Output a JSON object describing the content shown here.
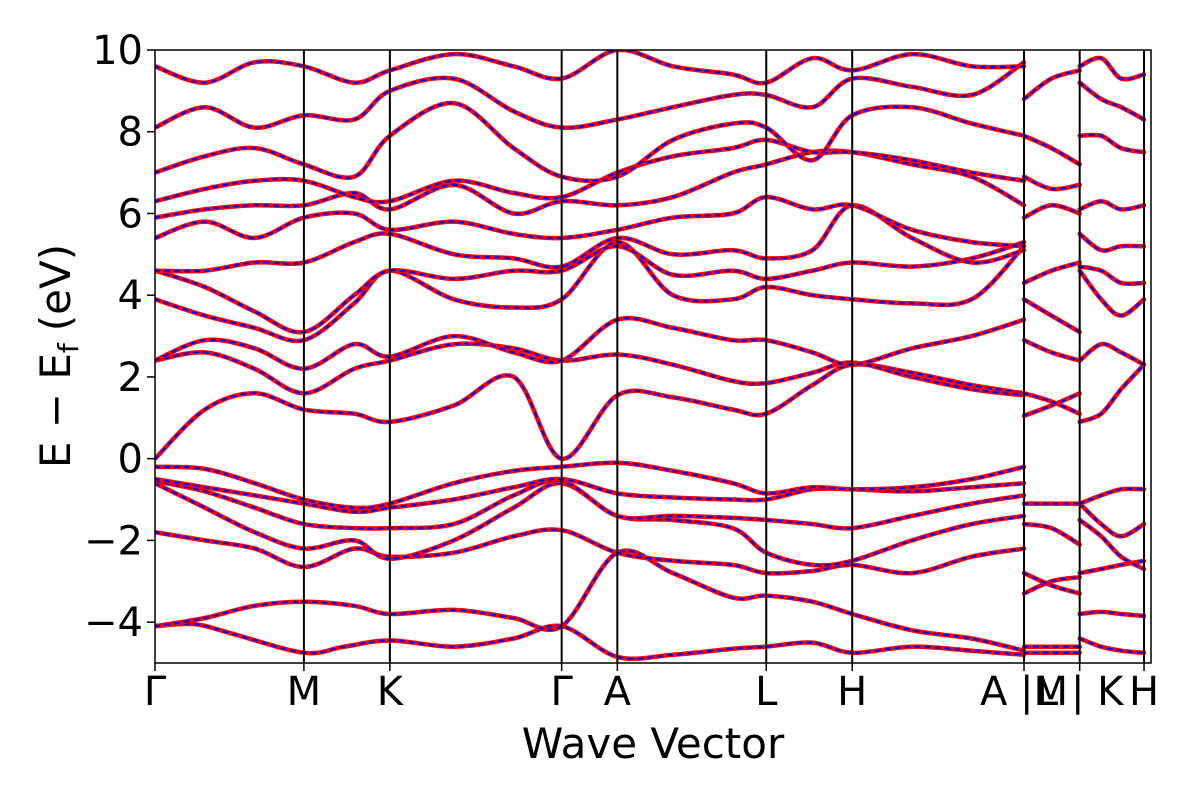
{
  "chart_data": {
    "type": "line",
    "title": "",
    "xlabel": "Wave Vector",
    "ylabel": "E − E",
    "ylabel_sub": "f",
    "ylabel_unit": "(eV)",
    "ylim": [
      -5,
      10
    ],
    "yticks": [
      -4,
      -2,
      0,
      2,
      4,
      6,
      8,
      10
    ],
    "ytick_labels": [
      "−4",
      "−2",
      "0",
      "2",
      "4",
      "6",
      "8",
      "10"
    ],
    "grid": false,
    "legend": "none",
    "path_length": 1.0,
    "kpoints": [
      {
        "label": "Γ",
        "x": 0.0
      },
      {
        "label": "M",
        "x": 0.1495
      },
      {
        "label": "K",
        "x": 0.2358
      },
      {
        "label": "Γ",
        "x": 0.4083
      },
      {
        "label": "A",
        "x": 0.4642
      },
      {
        "label": "L",
        "x": 0.6137
      },
      {
        "label": "H",
        "x": 0.7
      },
      {
        "label": "A |M",
        "x": 0.8725
      },
      {
        "label": "L | K",
        "x": 0.9284
      },
      {
        "label": "H",
        "x": 0.993
      }
    ],
    "segment_breaks": [
      0.8725,
      0.9284
    ],
    "colors": {
      "dft": "#ff0000",
      "model": "#0000ff"
    },
    "series": [
      {
        "x": [
          0,
          0.04,
          0.08,
          0.1495,
          0.19,
          0.2358,
          0.3,
          0.36,
          0.4083,
          0.4642,
          0.52,
          0.58,
          0.6137,
          0.66,
          0.7,
          0.76,
          0.82,
          0.8725
        ],
        "values": [
          -4.1,
          -4.05,
          -4.3,
          -4.75,
          -4.6,
          -4.45,
          -4.6,
          -4.4,
          -4.1,
          -4.85,
          -4.8,
          -4.65,
          -4.6,
          -4.5,
          -4.75,
          -4.6,
          -4.7,
          -4.8
        ]
      },
      {
        "x": [
          0,
          0.05,
          0.1,
          0.1495,
          0.2,
          0.2358,
          0.3,
          0.36,
          0.4083,
          0.4642,
          0.52,
          0.58,
          0.6137,
          0.66,
          0.7,
          0.76,
          0.82,
          0.8725
        ],
        "values": [
          -4.1,
          -3.9,
          -3.6,
          -3.5,
          -3.6,
          -3.8,
          -3.7,
          -3.9,
          -4.1,
          -2.3,
          -2.8,
          -3.4,
          -3.35,
          -3.5,
          -3.8,
          -4.2,
          -4.4,
          -4.7
        ]
      },
      {
        "x": [
          0,
          0.05,
          0.1,
          0.1495,
          0.2,
          0.2358,
          0.3,
          0.36,
          0.4083,
          0.4642,
          0.52,
          0.58,
          0.6137,
          0.66,
          0.7,
          0.76,
          0.82,
          0.8725
        ],
        "values": [
          -1.8,
          -2.0,
          -2.2,
          -2.65,
          -2.2,
          -2.4,
          -2.3,
          -1.9,
          -1.75,
          -2.3,
          -2.5,
          -2.6,
          -2.8,
          -2.75,
          -2.6,
          -2.8,
          -2.4,
          -2.2
        ]
      },
      {
        "x": [
          0,
          0.05,
          0.1,
          0.1495,
          0.2,
          0.2358,
          0.3,
          0.36,
          0.4083,
          0.4642,
          0.52,
          0.58,
          0.6137,
          0.66,
          0.7,
          0.76,
          0.82,
          0.8725
        ],
        "values": [
          -0.6,
          -1.2,
          -1.8,
          -2.2,
          -2.0,
          -2.45,
          -2.0,
          -1.2,
          -0.6,
          -1.4,
          -1.5,
          -1.7,
          -2.3,
          -2.6,
          -2.5,
          -2.0,
          -1.6,
          -1.4
        ]
      },
      {
        "x": [
          0,
          0.05,
          0.1,
          0.1495,
          0.2,
          0.2358,
          0.3,
          0.36,
          0.4083,
          0.4642,
          0.52,
          0.58,
          0.6137,
          0.66,
          0.7,
          0.76,
          0.82,
          0.8725
        ],
        "values": [
          -0.55,
          -0.8,
          -1.2,
          -1.6,
          -1.7,
          -1.7,
          -1.6,
          -0.9,
          -0.55,
          -1.4,
          -1.4,
          -1.45,
          -1.5,
          -1.6,
          -1.7,
          -1.4,
          -1.1,
          -0.9
        ]
      },
      {
        "x": [
          0,
          0.05,
          0.1,
          0.1495,
          0.2,
          0.2358,
          0.3,
          0.36,
          0.4083,
          0.4642,
          0.52,
          0.58,
          0.6137,
          0.66,
          0.7,
          0.76,
          0.82,
          0.8725
        ],
        "values": [
          -0.5,
          -0.7,
          -0.9,
          -1.1,
          -1.3,
          -1.2,
          -1.0,
          -0.7,
          -0.5,
          -0.85,
          -0.95,
          -1.0,
          -1.0,
          -0.75,
          -0.75,
          -0.8,
          -0.7,
          -0.6
        ]
      },
      {
        "x": [
          0,
          0.05,
          0.1,
          0.1495,
          0.2,
          0.2358,
          0.3,
          0.36,
          0.4083,
          0.4642,
          0.52,
          0.58,
          0.6137,
          0.66,
          0.7,
          0.76,
          0.82,
          0.8725
        ],
        "values": [
          -0.2,
          -0.25,
          -0.6,
          -1.0,
          -1.2,
          -1.1,
          -0.6,
          -0.3,
          -0.2,
          -0.1,
          -0.3,
          -0.6,
          -0.85,
          -0.7,
          -0.75,
          -0.7,
          -0.5,
          -0.2
        ]
      },
      {
        "x": [
          0,
          0.05,
          0.1,
          0.1495,
          0.2,
          0.2358,
          0.3,
          0.36,
          0.4083,
          0.4642,
          0.52,
          0.58,
          0.6137,
          0.66,
          0.7,
          0.76,
          0.82,
          0.8725
        ],
        "values": [
          0.0,
          1.2,
          1.6,
          1.2,
          1.1,
          0.9,
          1.3,
          2.0,
          0.0,
          1.55,
          1.5,
          1.2,
          1.1,
          1.8,
          2.3,
          2.1,
          1.8,
          1.6
        ]
      },
      {
        "x": [
          0,
          0.05,
          0.1,
          0.1495,
          0.2,
          0.2358,
          0.3,
          0.36,
          0.4083,
          0.4642,
          0.52,
          0.58,
          0.6137,
          0.66,
          0.7,
          0.76,
          0.82,
          0.8725
        ],
        "values": [
          2.4,
          2.6,
          2.2,
          1.6,
          2.2,
          2.4,
          2.8,
          2.7,
          2.4,
          2.55,
          2.3,
          1.9,
          1.85,
          2.1,
          2.35,
          2.0,
          1.7,
          1.55
        ]
      },
      {
        "x": [
          0,
          0.05,
          0.1,
          0.1495,
          0.2,
          0.2358,
          0.3,
          0.36,
          0.4083,
          0.4642,
          0.52,
          0.58,
          0.6137,
          0.66,
          0.7,
          0.76,
          0.82,
          0.8725
        ],
        "values": [
          2.4,
          2.9,
          2.7,
          2.2,
          2.8,
          2.5,
          3.0,
          2.6,
          2.4,
          3.4,
          3.2,
          2.9,
          2.9,
          2.6,
          2.3,
          2.7,
          3.0,
          3.4
        ]
      },
      {
        "x": [
          0,
          0.05,
          0.1,
          0.1495,
          0.2,
          0.2358,
          0.3,
          0.36,
          0.4083,
          0.4642,
          0.52,
          0.58,
          0.6137,
          0.66,
          0.7,
          0.76,
          0.82,
          0.8725
        ],
        "values": [
          3.9,
          3.5,
          3.2,
          2.9,
          3.8,
          4.6,
          3.9,
          3.7,
          3.9,
          5.3,
          4.0,
          3.9,
          4.2,
          4.0,
          3.9,
          3.8,
          3.9,
          5.2
        ]
      },
      {
        "x": [
          0,
          0.05,
          0.1,
          0.1495,
          0.2,
          0.2358,
          0.3,
          0.36,
          0.4083,
          0.4642,
          0.52,
          0.58,
          0.6137,
          0.66,
          0.7,
          0.76,
          0.82,
          0.8725
        ],
        "values": [
          4.6,
          4.2,
          3.6,
          3.1,
          4.0,
          4.6,
          4.4,
          4.6,
          4.6,
          5.2,
          4.5,
          4.6,
          4.4,
          4.6,
          4.8,
          4.7,
          4.9,
          5.3
        ]
      },
      {
        "x": [
          0,
          0.05,
          0.1,
          0.1495,
          0.2,
          0.2358,
          0.3,
          0.36,
          0.4083,
          0.4642,
          0.52,
          0.58,
          0.6137,
          0.66,
          0.7,
          0.76,
          0.82,
          0.8725
        ],
        "values": [
          4.6,
          4.6,
          4.8,
          4.8,
          5.3,
          5.5,
          5.0,
          4.9,
          4.7,
          5.4,
          5.0,
          5.1,
          4.9,
          5.1,
          6.2,
          5.4,
          4.8,
          5.1
        ]
      },
      {
        "x": [
          0,
          0.05,
          0.1,
          0.1495,
          0.2,
          0.2358,
          0.3,
          0.36,
          0.4083,
          0.4642,
          0.52,
          0.58,
          0.6137,
          0.66,
          0.7,
          0.76,
          0.82,
          0.8725
        ],
        "values": [
          5.4,
          5.8,
          5.4,
          5.9,
          6.0,
          5.6,
          5.8,
          5.5,
          5.4,
          5.6,
          5.9,
          6.0,
          6.4,
          6.1,
          6.2,
          5.6,
          5.3,
          5.2
        ]
      },
      {
        "x": [
          0,
          0.05,
          0.1,
          0.1495,
          0.2,
          0.2358,
          0.3,
          0.36,
          0.4083,
          0.4642,
          0.52,
          0.58,
          0.6137,
          0.66,
          0.7,
          0.76,
          0.82,
          0.8725
        ],
        "values": [
          5.9,
          6.1,
          6.2,
          6.2,
          6.5,
          6.1,
          6.7,
          6.0,
          6.3,
          6.2,
          6.4,
          7.0,
          7.2,
          7.5,
          7.5,
          7.2,
          6.9,
          6.2
        ]
      },
      {
        "x": [
          0,
          0.05,
          0.1,
          0.1495,
          0.2,
          0.2358,
          0.3,
          0.36,
          0.4083,
          0.4642,
          0.52,
          0.58,
          0.6137,
          0.66,
          0.7,
          0.76,
          0.82,
          0.8725
        ],
        "values": [
          6.3,
          6.6,
          6.8,
          6.8,
          6.4,
          6.3,
          6.8,
          6.5,
          6.4,
          7.0,
          7.4,
          7.6,
          7.8,
          7.5,
          7.5,
          7.3,
          7.0,
          6.8
        ]
      },
      {
        "x": [
          0,
          0.05,
          0.1,
          0.1495,
          0.2,
          0.2358,
          0.3,
          0.36,
          0.4083,
          0.4642,
          0.52,
          0.58,
          0.6137,
          0.66,
          0.7,
          0.76,
          0.82,
          0.8725
        ],
        "values": [
          7.0,
          7.4,
          7.6,
          7.2,
          6.9,
          7.9,
          8.7,
          7.6,
          6.9,
          6.9,
          7.8,
          8.2,
          8.1,
          7.3,
          8.4,
          8.6,
          8.2,
          7.9
        ]
      },
      {
        "x": [
          0,
          0.05,
          0.1,
          0.1495,
          0.2,
          0.2358,
          0.3,
          0.36,
          0.4083,
          0.4642,
          0.52,
          0.58,
          0.6137,
          0.66,
          0.7,
          0.76,
          0.82,
          0.8725
        ],
        "values": [
          8.1,
          8.6,
          8.1,
          8.4,
          8.3,
          9.0,
          9.3,
          8.5,
          8.1,
          8.3,
          8.6,
          8.9,
          8.9,
          8.6,
          9.3,
          9.1,
          8.9,
          9.7
        ]
      },
      {
        "x": [
          0,
          0.05,
          0.1,
          0.1495,
          0.2,
          0.2358,
          0.3,
          0.36,
          0.4083,
          0.4642,
          0.52,
          0.58,
          0.6137,
          0.66,
          0.7,
          0.76,
          0.82,
          0.8725
        ],
        "values": [
          9.6,
          9.2,
          9.7,
          9.6,
          9.2,
          9.5,
          9.9,
          9.6,
          9.3,
          10.0,
          9.6,
          9.4,
          9.2,
          9.8,
          9.5,
          9.9,
          9.6,
          9.6
        ]
      },
      {
        "x": [
          0.8725,
          0.9,
          0.9284
        ],
        "values": [
          -4.75,
          -4.75,
          -4.75
        ]
      },
      {
        "x": [
          0.8725,
          0.9,
          0.9284
        ],
        "values": [
          -4.6,
          -4.6,
          -4.6
        ]
      },
      {
        "x": [
          0.8725,
          0.9,
          0.9284
        ],
        "values": [
          -3.3,
          -3.0,
          -2.9
        ]
      },
      {
        "x": [
          0.8725,
          0.9,
          0.9284
        ],
        "values": [
          -2.8,
          -3.1,
          -3.3
        ]
      },
      {
        "x": [
          0.8725,
          0.9,
          0.9284
        ],
        "values": [
          -1.6,
          -1.7,
          -2.1
        ]
      },
      {
        "x": [
          0.8725,
          0.9,
          0.9284
        ],
        "values": [
          -1.1,
          -1.1,
          -1.1
        ]
      },
      {
        "x": [
          0.8725,
          0.9,
          0.9284
        ],
        "values": [
          1.05,
          1.3,
          1.6
        ]
      },
      {
        "x": [
          0.8725,
          0.9,
          0.9284
        ],
        "values": [
          1.6,
          1.4,
          1.1
        ]
      },
      {
        "x": [
          0.8725,
          0.9,
          0.9284
        ],
        "values": [
          2.9,
          2.6,
          2.4
        ]
      },
      {
        "x": [
          0.8725,
          0.9,
          0.9284
        ],
        "values": [
          3.9,
          3.5,
          3.1
        ]
      },
      {
        "x": [
          0.8725,
          0.9,
          0.9284
        ],
        "values": [
          4.3,
          4.6,
          4.8
        ]
      },
      {
        "x": [
          0.8725,
          0.9,
          0.9284
        ],
        "values": [
          5.9,
          6.2,
          6.0
        ]
      },
      {
        "x": [
          0.8725,
          0.9,
          0.9284
        ],
        "values": [
          6.9,
          6.6,
          6.7
        ]
      },
      {
        "x": [
          0.8725,
          0.9,
          0.9284
        ],
        "values": [
          7.9,
          7.6,
          7.2
        ]
      },
      {
        "x": [
          0.8725,
          0.9,
          0.9284
        ],
        "values": [
          8.8,
          9.3,
          9.5
        ]
      },
      {
        "x": [
          0.9284,
          0.95,
          0.97,
          0.993
        ],
        "values": [
          -4.4,
          -4.6,
          -4.7,
          -4.75
        ]
      },
      {
        "x": [
          0.9284,
          0.95,
          0.97,
          0.993
        ],
        "values": [
          -3.8,
          -3.75,
          -3.8,
          -3.85
        ]
      },
      {
        "x": [
          0.9284,
          0.95,
          0.97,
          0.993
        ],
        "values": [
          -2.8,
          -2.7,
          -2.6,
          -2.5
        ]
      },
      {
        "x": [
          0.9284,
          0.95,
          0.97,
          0.993
        ],
        "values": [
          -1.5,
          -1.9,
          -2.4,
          -2.7
        ]
      },
      {
        "x": [
          0.9284,
          0.95,
          0.97,
          0.993
        ],
        "values": [
          -1.1,
          -1.6,
          -1.9,
          -1.6
        ]
      },
      {
        "x": [
          0.9284,
          0.95,
          0.97,
          0.993
        ],
        "values": [
          -1.1,
          -0.9,
          -0.75,
          -0.75
        ]
      },
      {
        "x": [
          0.9284,
          0.95,
          0.97,
          0.993
        ],
        "values": [
          0.9,
          1.1,
          1.7,
          2.3
        ]
      },
      {
        "x": [
          0.9284,
          0.95,
          0.97,
          0.993
        ],
        "values": [
          2.4,
          2.8,
          2.6,
          2.3
        ]
      },
      {
        "x": [
          0.9284,
          0.95,
          0.97,
          0.993
        ],
        "values": [
          4.6,
          3.9,
          3.5,
          3.9
        ]
      },
      {
        "x": [
          0.9284,
          0.95,
          0.97,
          0.993
        ],
        "values": [
          4.7,
          4.6,
          4.3,
          4.3
        ]
      },
      {
        "x": [
          0.9284,
          0.95,
          0.97,
          0.993
        ],
        "values": [
          5.5,
          5.1,
          5.2,
          5.2
        ]
      },
      {
        "x": [
          0.9284,
          0.95,
          0.97,
          0.993
        ],
        "values": [
          6.1,
          6.3,
          6.1,
          6.2
        ]
      },
      {
        "x": [
          0.9284,
          0.95,
          0.97,
          0.993
        ],
        "values": [
          7.9,
          7.9,
          7.6,
          7.5
        ]
      },
      {
        "x": [
          0.9284,
          0.95,
          0.97,
          0.993
        ],
        "values": [
          9.2,
          8.8,
          8.6,
          8.3
        ]
      },
      {
        "x": [
          0.9284,
          0.95,
          0.97,
          0.993
        ],
        "values": [
          9.6,
          9.8,
          9.3,
          9.4
        ]
      }
    ]
  }
}
